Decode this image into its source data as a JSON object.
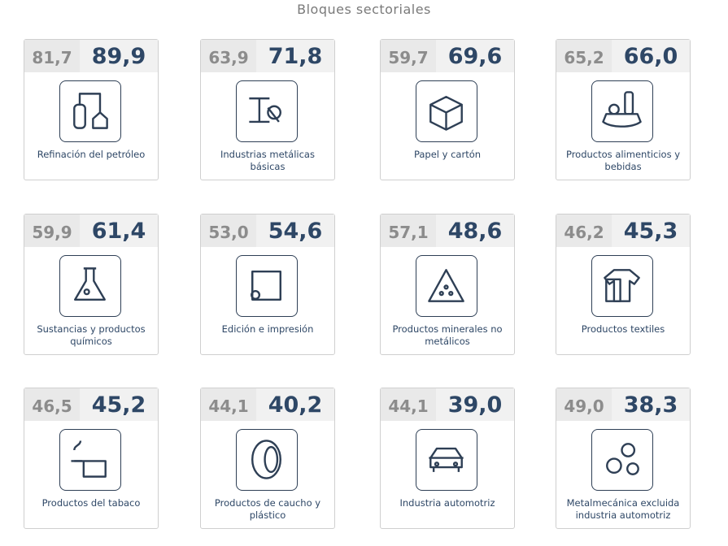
{
  "title": "Bloques sectoriales",
  "cards": [
    {
      "previous": "81,7",
      "current": "89,9",
      "label": "Refinación del petróleo"
    },
    {
      "previous": "63,9",
      "current": "71,8",
      "label": "Industrias metálicas básicas"
    },
    {
      "previous": "59,7",
      "current": "69,6",
      "label": "Papel y cartón"
    },
    {
      "previous": "65,2",
      "current": "66,0",
      "label": "Productos alimenticios y bebidas"
    },
    {
      "previous": "59,9",
      "current": "61,4",
      "label": "Sustancias y productos químicos"
    },
    {
      "previous": "53,0",
      "current": "54,6",
      "label": "Edición e impresión"
    },
    {
      "previous": "57,1",
      "current": "48,6",
      "label": "Productos minerales no metálicos"
    },
    {
      "previous": "46,2",
      "current": "45,3",
      "label": "Productos textiles"
    },
    {
      "previous": "46,5",
      "current": "45,2",
      "label": "Productos del tabaco"
    },
    {
      "previous": "44,1",
      "current": "40,2",
      "label": "Productos de caucho y plástico"
    },
    {
      "previous": "44,1",
      "current": "39,0",
      "label": "Industria automotriz"
    },
    {
      "previous": "49,0",
      "current": "38,3",
      "label": "Metalmecánica excluida industria automotriz"
    }
  ]
}
